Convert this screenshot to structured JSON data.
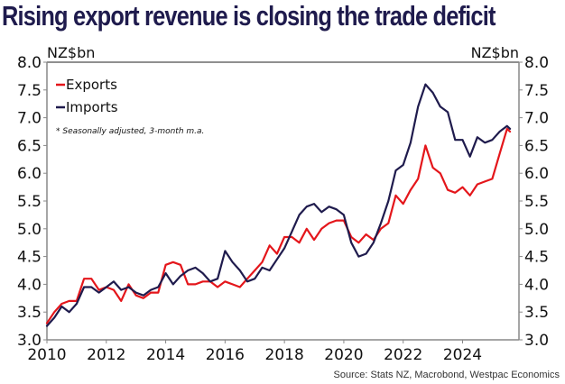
{
  "chart_data": {
    "type": "line",
    "title": "Rising export revenue is closing the trade deficit",
    "ylabel_left": "NZ$bn",
    "ylabel_right": "NZ$bn",
    "xlabel": "",
    "ylim": [
      3.0,
      8.0
    ],
    "xlim": [
      2010,
      2025.9
    ],
    "y_ticks": [
      "8.0",
      "7.5",
      "7.0",
      "6.5",
      "6.0",
      "5.5",
      "5.0",
      "4.5",
      "4.0",
      "3.5",
      "3.0"
    ],
    "y_tick_values": [
      8.0,
      7.5,
      7.0,
      6.5,
      6.0,
      5.5,
      5.0,
      4.5,
      4.0,
      3.5,
      3.0
    ],
    "x_ticks": [
      "2010",
      "2012",
      "2014",
      "2016",
      "2018",
      "2020",
      "2022",
      "2024"
    ],
    "x_tick_values": [
      2010,
      2012,
      2014,
      2016,
      2018,
      2020,
      2022,
      2024
    ],
    "grid": false,
    "legend_position": "top-left",
    "note": "* Seasonally adjusted, 3-month m.a.",
    "source": "Source: Stats NZ, Macrobond, Westpac Economics",
    "x": [
      2010.0,
      2010.25,
      2010.5,
      2010.75,
      2011.0,
      2011.25,
      2011.5,
      2011.75,
      2012.0,
      2012.25,
      2012.5,
      2012.75,
      2013.0,
      2013.25,
      2013.5,
      2013.75,
      2014.0,
      2014.25,
      2014.5,
      2014.75,
      2015.0,
      2015.25,
      2015.5,
      2015.75,
      2016.0,
      2016.25,
      2016.5,
      2016.75,
      2017.0,
      2017.25,
      2017.5,
      2017.75,
      2018.0,
      2018.25,
      2018.5,
      2018.75,
      2019.0,
      2019.25,
      2019.5,
      2019.75,
      2020.0,
      2020.25,
      2020.5,
      2020.75,
      2021.0,
      2021.25,
      2021.5,
      2021.75,
      2022.0,
      2022.25,
      2022.5,
      2022.75,
      2023.0,
      2023.25,
      2023.5,
      2023.75,
      2024.0,
      2024.25,
      2024.5,
      2024.75,
      2025.0,
      2025.25,
      2025.5,
      2025.6
    ],
    "series": [
      {
        "name": "Exports",
        "color": "#e4161b",
        "values": [
          3.3,
          3.5,
          3.65,
          3.7,
          3.7,
          4.1,
          4.1,
          3.9,
          3.95,
          3.9,
          3.7,
          4.0,
          3.8,
          3.75,
          3.85,
          3.85,
          4.35,
          4.4,
          4.35,
          4.0,
          4.0,
          4.05,
          4.05,
          3.95,
          4.05,
          4.0,
          3.95,
          4.1,
          4.25,
          4.4,
          4.7,
          4.55,
          4.85,
          4.85,
          4.75,
          5.0,
          4.8,
          5.0,
          5.1,
          5.15,
          5.15,
          4.85,
          4.75,
          4.9,
          4.8,
          5.0,
          5.1,
          5.6,
          5.45,
          5.7,
          5.9,
          6.5,
          6.1,
          6.0,
          5.7,
          5.65,
          5.75,
          5.6,
          5.8,
          5.85,
          5.9,
          6.35,
          6.8,
          6.75
        ]
      },
      {
        "name": "Imports",
        "color": "#1f1b4d",
        "values": [
          3.25,
          3.4,
          3.6,
          3.5,
          3.65,
          3.95,
          3.95,
          3.85,
          3.95,
          4.05,
          3.9,
          3.95,
          3.85,
          3.8,
          3.9,
          3.95,
          4.2,
          4.0,
          4.15,
          4.25,
          4.3,
          4.2,
          4.05,
          4.1,
          4.6,
          4.4,
          4.25,
          4.05,
          4.1,
          4.3,
          4.25,
          4.45,
          4.65,
          4.95,
          5.25,
          5.4,
          5.45,
          5.3,
          5.4,
          5.35,
          5.25,
          4.75,
          4.5,
          4.55,
          4.75,
          5.1,
          5.5,
          6.05,
          6.15,
          6.55,
          7.2,
          7.6,
          7.45,
          7.2,
          7.1,
          6.6,
          6.6,
          6.3,
          6.65,
          6.55,
          6.6,
          6.75,
          6.85,
          6.8
        ]
      }
    ]
  }
}
